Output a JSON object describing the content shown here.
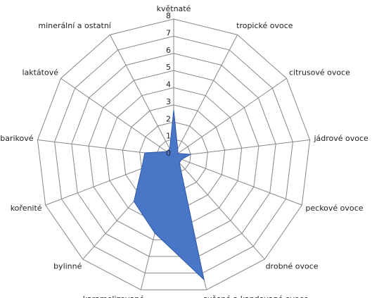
{
  "chart_data": {
    "type": "radar",
    "categories": [
      "květnaté",
      "tropické ovoce",
      "citrusové ovoce",
      "jádrové ovoce",
      "peckové ovoce",
      "drobné ovoce",
      "sušené a kandované ovoce",
      "karamelizované",
      "bylinné",
      "kořenité",
      "barikové",
      "laktátové",
      "minerální a ostatní"
    ],
    "values": [
      2.7,
      0.5,
      0.3,
      1,
      0.5,
      0.5,
      7.4,
      4.6,
      3.5,
      2,
      1.7,
      0.5,
      0.5
    ],
    "color": "#4a76c8",
    "ylim": [
      0,
      8
    ],
    "yticks": [
      0,
      1,
      2,
      3,
      4,
      5,
      6,
      7,
      8
    ],
    "grid": true
  }
}
